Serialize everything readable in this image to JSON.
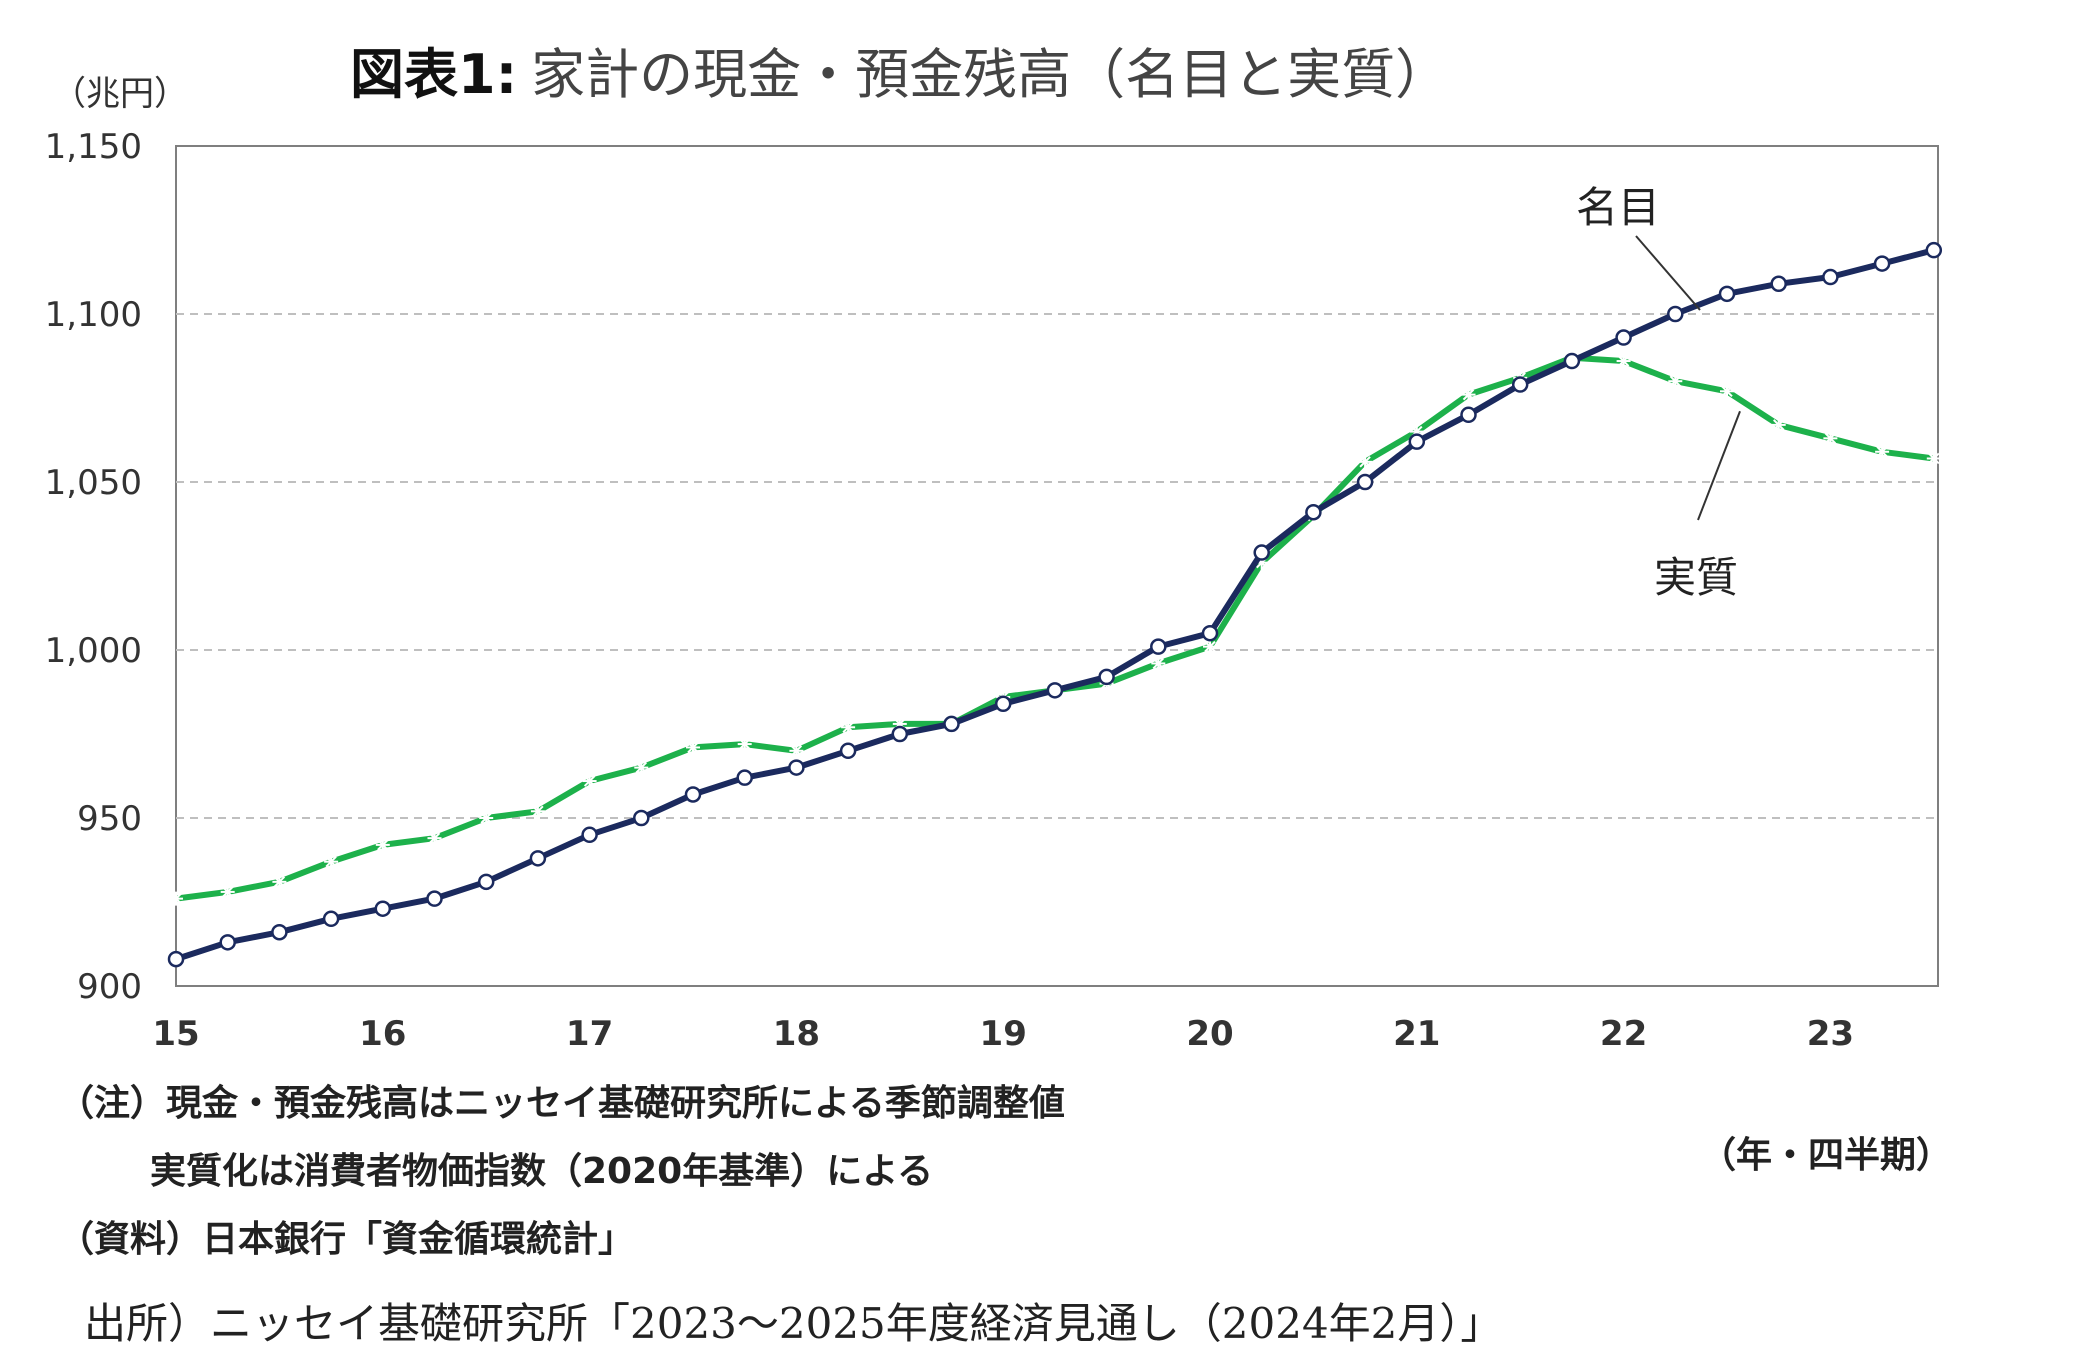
{
  "title": {
    "prefix": "図表1:",
    "main": "家計の現金・預金残高（名目と実質）"
  },
  "y_unit": "（兆円）",
  "x_unit": "（年・四半期）",
  "notes": {
    "line1": "（注）現金・預金残高はニッセイ基礎研究所による季節調整値",
    "line2": "実質化は消費者物価指数（2020年基準）による",
    "line3": "（資料）日本銀行「資金循環統計」"
  },
  "source": "出所）ニッセイ基礎研究所「2023～2025年度経済見通し（2024年2月）」",
  "chart_data": {
    "type": "line",
    "title": "家計の現金・預金残高（名目と実質）",
    "xlabel": "（年・四半期）",
    "ylabel": "（兆円）",
    "ylim": [
      900,
      1150
    ],
    "yticks": [
      900,
      950,
      1000,
      1050,
      1100,
      1150
    ],
    "ytick_labels": [
      "900",
      "950",
      "1,000",
      "1,050",
      "1,100",
      "1,150"
    ],
    "x_tick_labels": [
      "15",
      "16",
      "17",
      "18",
      "19",
      "20",
      "21",
      "22",
      "23"
    ],
    "quarters_per_year": 4,
    "grid": "horizontal dashed",
    "series": [
      {
        "name": "名目",
        "color": "#1b2a5e",
        "marker": "circle",
        "values": [
          908,
          913,
          916,
          920,
          923,
          926,
          931,
          938,
          945,
          950,
          957,
          962,
          965,
          970,
          975,
          978,
          984,
          988,
          992,
          1001,
          1005,
          1029,
          1041,
          1050,
          1062,
          1070,
          1079,
          1086,
          1093,
          1100,
          1106,
          1109,
          1111,
          1115,
          1119
        ]
      },
      {
        "name": "実質",
        "color": "#1db14b",
        "marker": "asterisk",
        "values": [
          926,
          928,
          931,
          937,
          942,
          944,
          950,
          952,
          961,
          965,
          971,
          972,
          970,
          977,
          978,
          978,
          986,
          988,
          990,
          996,
          1001,
          1026,
          1040,
          1056,
          1065,
          1076,
          1081,
          1087,
          1086,
          1080,
          1077,
          1067,
          1063,
          1059,
          1057
        ]
      }
    ]
  }
}
